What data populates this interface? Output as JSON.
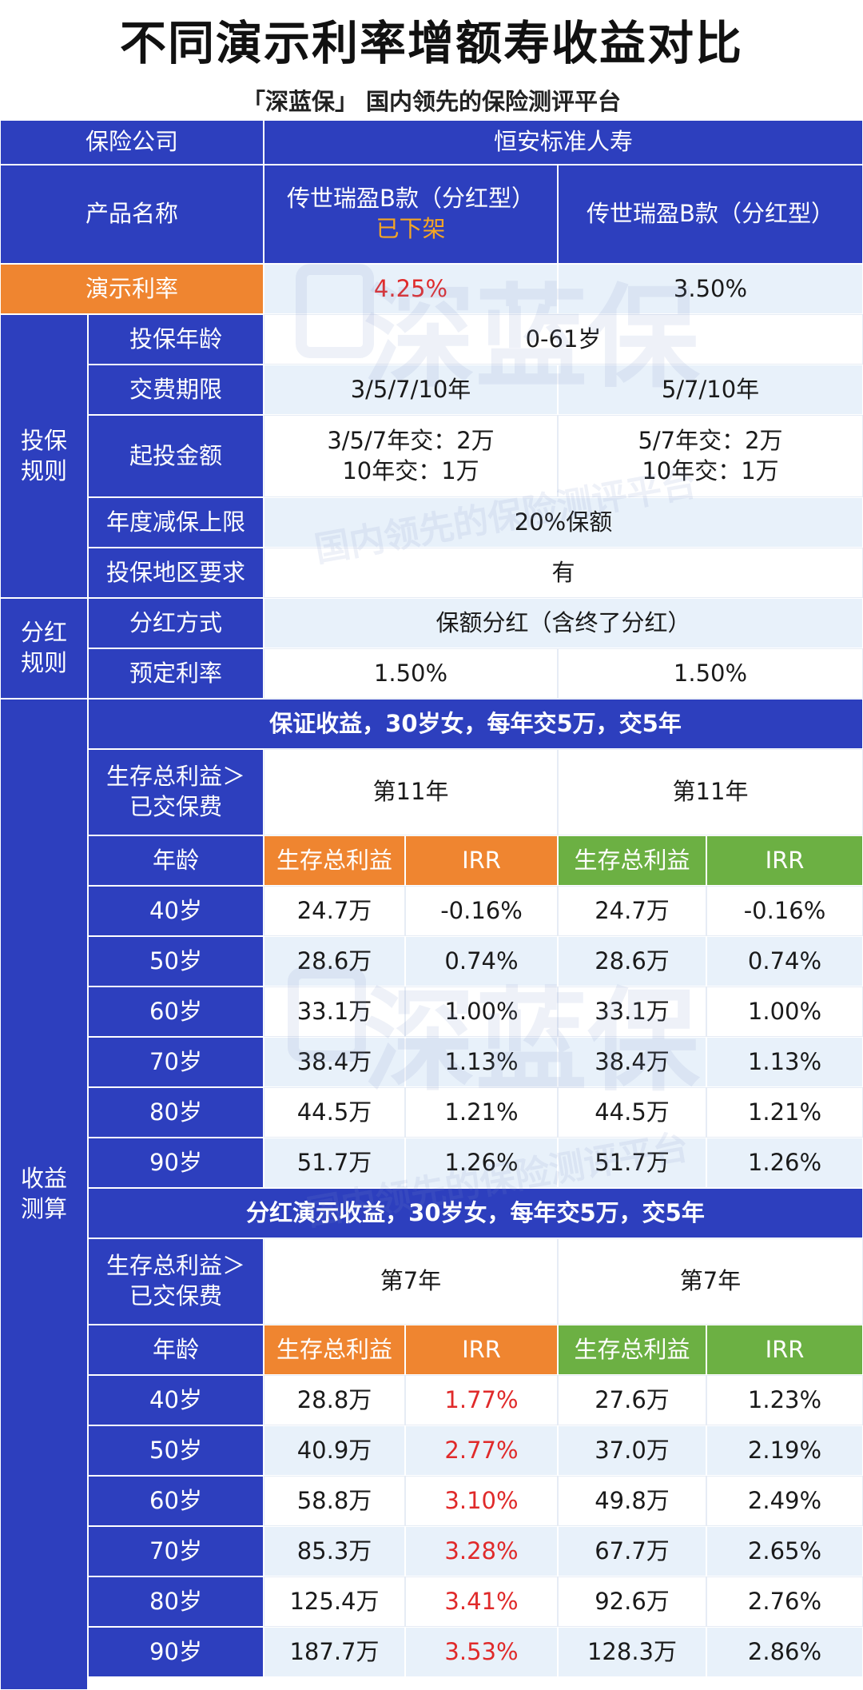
{
  "title": "不同演示利率增额寿收益对比",
  "subtitle": "「深蓝保」 国内领先的保险测评平台",
  "watermark": {
    "brand": "深蓝保",
    "slogan": "国内领先的保险测评平台"
  },
  "colors": {
    "blue": "#2d3fbe",
    "orange": "#ef8530",
    "green": "#6cb043",
    "light": "#e8f1fa",
    "red": "#e02a2a",
    "note": "#f5a623"
  },
  "header": {
    "company_label": "保险公司",
    "company_name": "恒安标准人寿",
    "product_label": "产品名称",
    "product_a": "传世瑞盈B款（分红型）",
    "product_a_note": "已下架",
    "product_b": "传世瑞盈B款（分红型）",
    "rate_label": "演示利率",
    "rate_a": "4.25%",
    "rate_b": "3.50%"
  },
  "rules": {
    "group_label": "投保\n规则",
    "age_label": "投保年龄",
    "age_value": "0-61岁",
    "term_label": "交费期限",
    "term_a": "3/5/7/10年",
    "term_b": "5/7/10年",
    "min_label": "起投金额",
    "min_a": "3/5/7年交：2万\n10年交：1万",
    "min_b": "5/7年交：2万\n10年交：1万",
    "reduce_label": "年度减保上限",
    "reduce_value": "20%保额",
    "region_label": "投保地区要求",
    "region_value": "有"
  },
  "dividend": {
    "group_label": "分红\n规则",
    "method_label": "分红方式",
    "method_value": "保额分红（含终了分红）",
    "rate_label": "预定利率",
    "rate_a": "1.50%",
    "rate_b": "1.50%"
  },
  "calc": {
    "group_label": "收益\n测算",
    "guaranteed": {
      "title": "保证收益，30岁女，每年交5万，交5年",
      "surpass_label": "生存总利益＞\n已交保费",
      "surpass_a": "第11年",
      "surpass_b": "第11年",
      "col_age": "年龄",
      "col_benefit": "生存总利益",
      "col_irr": "IRR",
      "rows": [
        {
          "age": "40岁",
          "a_benefit": "24.7万",
          "a_irr": "-0.16%",
          "b_benefit": "24.7万",
          "b_irr": "-0.16%"
        },
        {
          "age": "50岁",
          "a_benefit": "28.6万",
          "a_irr": "0.74%",
          "b_benefit": "28.6万",
          "b_irr": "0.74%"
        },
        {
          "age": "60岁",
          "a_benefit": "33.1万",
          "a_irr": "1.00%",
          "b_benefit": "33.1万",
          "b_irr": "1.00%"
        },
        {
          "age": "70岁",
          "a_benefit": "38.4万",
          "a_irr": "1.13%",
          "b_benefit": "38.4万",
          "b_irr": "1.13%"
        },
        {
          "age": "80岁",
          "a_benefit": "44.5万",
          "a_irr": "1.21%",
          "b_benefit": "44.5万",
          "b_irr": "1.21%"
        },
        {
          "age": "90岁",
          "a_benefit": "51.7万",
          "a_irr": "1.26%",
          "b_benefit": "51.7万",
          "b_irr": "1.26%"
        }
      ]
    },
    "dividend": {
      "title": "分红演示收益，30岁女，每年交5万，交5年",
      "surpass_label": "生存总利益＞\n已交保费",
      "surpass_a": "第7年",
      "surpass_b": "第7年",
      "col_age": "年龄",
      "col_benefit": "生存总利益",
      "col_irr": "IRR",
      "rows": [
        {
          "age": "40岁",
          "a_benefit": "28.8万",
          "a_irr": "1.77%",
          "b_benefit": "27.6万",
          "b_irr": "1.23%"
        },
        {
          "age": "50岁",
          "a_benefit": "40.9万",
          "a_irr": "2.77%",
          "b_benefit": "37.0万",
          "b_irr": "2.19%"
        },
        {
          "age": "60岁",
          "a_benefit": "58.8万",
          "a_irr": "3.10%",
          "b_benefit": "49.8万",
          "b_irr": "2.49%"
        },
        {
          "age": "70岁",
          "a_benefit": "85.3万",
          "a_irr": "3.28%",
          "b_benefit": "67.7万",
          "b_irr": "2.65%"
        },
        {
          "age": "80岁",
          "a_benefit": "125.4万",
          "a_irr": "3.41%",
          "b_benefit": "92.6万",
          "b_irr": "2.76%"
        },
        {
          "age": "90岁",
          "a_benefit": "187.7万",
          "a_irr": "3.53%",
          "b_benefit": "128.3万",
          "b_irr": "2.86%"
        }
      ]
    }
  }
}
